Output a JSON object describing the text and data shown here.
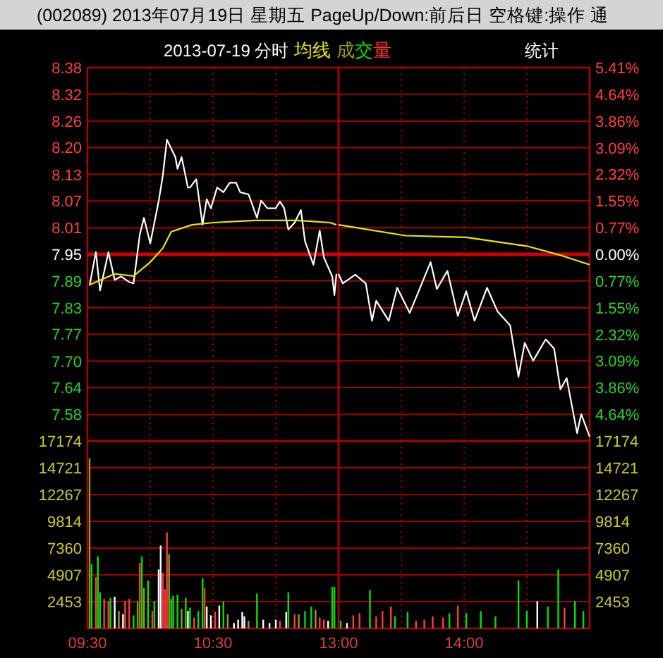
{
  "chart_data": [
    {
      "type": "line",
      "title": "(002089) 2013年07月19日 星期五 PageUp/Down:前后日 空格键:操作 通",
      "subtitle": "2013-07-19 分时",
      "xlim": [
        9.5,
        11.5
      ],
      "xticks": [
        {
          "value": 9.5,
          "label": null
        },
        {
          "value": 10,
          "label": null
        },
        {
          "value": 10.5,
          "label": null
        },
        {
          "value": 11,
          "label": null
        },
        {
          "value": 11.5,
          "label": null
        }
      ],
      "ylim": [
        7.52,
        8.38
      ],
      "yticks": [
        {
          "value": 7.581,
          "label": "7.58"
        },
        {
          "value": 7.643,
          "label": "7.64"
        },
        {
          "value": 7.704,
          "label": "7.70"
        },
        {
          "value": 7.766,
          "label": "7.77"
        },
        {
          "value": 7.827,
          "label": "7.83"
        },
        {
          "value": 7.889,
          "label": "7.89"
        },
        7.95,
        {
          "value": 8.011,
          "label": "8.01"
        },
        {
          "value": 8.073,
          "label": "8.07"
        },
        {
          "value": 8.134,
          "label": "8.13"
        },
        {
          "value": 8.196,
          "label": "8.20"
        },
        {
          "value": 8.257,
          "label": "8.26"
        },
        {
          "value": 8.319,
          "label": "8.32"
        },
        8.38
      ],
      "tick_labels": "y",
      "grid": true,
      "legend": "top",
      "line_style": "solid",
      "ref_lines": [
        {
          "axis": "y",
          "value": 7.95,
          "color": "#d00000"
        }
      ],
      "series": [
        {
          "color": "#ffffff",
          "x": [
            9.517,
            9.567,
            9.6,
            9.633,
            9.667,
            9.717,
            9.767,
            9.833,
            9.867,
            9.917,
            9.95,
            10,
            10.067,
            10.1,
            10.133,
            10.2,
            10.217,
            10.25,
            10.3,
            10.317,
            10.367,
            10.417,
            10.45,
            10.483,
            10.533,
            10.583,
            10.633,
            10.683,
            10.717,
            10.783,
            10.85,
            10.883,
            10.933,
            11,
            11.033,
            11.067,
            11.1,
            11.15,
            11.2,
            11.233,
            11.3,
            11.35,
            11.383,
            11.45,
            11.467,
            11.483
          ],
          "values": [
            7.878,
            7.955,
            7.867,
            7.91,
            7.955,
            7.891,
            7.899,
            7.886,
            7.883,
            7.996,
            8.034,
            7.975,
            8.072,
            8.131,
            8.214,
            8.174,
            8.147,
            8.174,
            8.104,
            8.104,
            8.123,
            8.018,
            8.077,
            8.056,
            8.104,
            8.093,
            8.115,
            8.115,
            8.093,
            8.088,
            8.034,
            8.074,
            8.056,
            8.056,
            8.072,
            8.056,
            8.007,
            8.023,
            8.052,
            7.98,
            7.926,
            8.005,
            7.943,
            7.899,
            7.856,
            7.905
          ]
        },
        {
          "name": "均线",
          "color": "#e8e800",
          "x": [
            9.517,
            9.717,
            9.867,
            10,
            10.1,
            10.167,
            10.333,
            10.5,
            10.833,
            11.167,
            11.283,
            11.433,
            11.483
          ],
          "values": [
            7.88,
            7.905,
            7.9,
            7.932,
            7.964,
            8.002,
            8.018,
            8.023,
            8.028,
            8.028,
            8.026,
            8.023,
            8.018
          ]
        }
      ]
    },
    {
      "type": "line",
      "annotations": [
        "统计"
      ],
      "xlim": [
        13,
        15
      ],
      "xticks": [
        {
          "value": 13,
          "label": null
        },
        {
          "value": 13.5,
          "label": null
        },
        {
          "value": 14,
          "label": null
        },
        {
          "value": 14.5,
          "label": null
        },
        {
          "value": 15,
          "label": null
        }
      ],
      "ylim": [
        7.52,
        8.38
      ],
      "y2lim": [
        -5.41,
        5.41
      ],
      "y2ticks": [
        {
          "value": -4.64,
          "label": "4.64%"
        },
        {
          "value": -3.86,
          "label": "3.86%"
        },
        {
          "value": -3.09,
          "label": "3.09%"
        },
        {
          "value": -2.32,
          "label": "2.32%"
        },
        {
          "value": -1.55,
          "label": "1.55%"
        },
        {
          "value": -0.77,
          "label": "0.77%"
        },
        {
          "value": 0,
          "label": "0.00%"
        },
        {
          "value": 0.77,
          "label": "0.77%"
        },
        {
          "value": 1.55,
          "label": "1.55%"
        },
        {
          "value": 2.32,
          "label": "2.32%"
        },
        {
          "value": 3.09,
          "label": "3.09%"
        },
        {
          "value": 3.86,
          "label": "3.86%"
        },
        {
          "value": 4.64,
          "label": "4.64%"
        },
        {
          "value": 5.41,
          "label": "5.41%"
        }
      ],
      "tick_labels": "y",
      "grid": true,
      "line_style": "solid",
      "ref_lines": [
        {
          "axis": "y",
          "value": 7.95,
          "color": "#d00000"
        }
      ],
      "series": [
        {
          "color": "#ffffff",
          "x": [
            13,
            13.033,
            13.133,
            13.217,
            13.267,
            13.3,
            13.4,
            13.467,
            13.567,
            13.733,
            13.783,
            13.867,
            13.95,
            14.017,
            14.083,
            14.183,
            14.267,
            14.367,
            14.433,
            14.483,
            14.55,
            14.65,
            14.717,
            14.767,
            14.817,
            14.9,
            14.933,
            15
          ],
          "values": [
            7.905,
            7.883,
            7.903,
            7.883,
            7.797,
            7.843,
            7.797,
            7.873,
            7.815,
            7.932,
            7.87,
            7.912,
            7.808,
            7.865,
            7.797,
            7.873,
            7.818,
            7.786,
            7.668,
            7.746,
            7.705,
            7.754,
            7.733,
            7.639,
            7.665,
            7.538,
            7.582,
            7.53
          ]
        },
        {
          "color": "#e8e800",
          "x": [
            13,
            13.533,
            14.017,
            14.5,
            14.767,
            15
          ],
          "values": [
            8.018,
            7.993,
            7.989,
            7.969,
            7.948,
            7.926
          ]
        }
      ]
    },
    {
      "type": "bar",
      "xlim": [
        9.5,
        11.5
      ],
      "xticks": [
        {
          "value": 9.5,
          "label": "09:30"
        },
        {
          "value": 10,
          "label": null
        },
        {
          "value": 10.5,
          "label": "10:30"
        },
        {
          "value": 11,
          "label": null
        },
        {
          "value": 11.5,
          "label": null
        }
      ],
      "ylim": [
        0,
        17174
      ],
      "yticks": [
        2453,
        4907,
        7360,
        9814,
        12267,
        14721,
        17174
      ],
      "grid": true,
      "legend": "top",
      "series": [
        {
          "name": "成交量",
          "x": [
            9.517,
            9.533,
            9.567,
            9.583,
            9.6,
            9.633,
            9.667,
            9.683,
            9.717,
            9.75,
            9.783,
            9.8,
            9.833,
            9.867,
            9.9,
            9.917,
            9.933,
            9.95,
            9.983,
            10.017,
            10.033,
            10.067,
            10.083,
            10.1,
            10.117,
            10.133,
            10.15,
            10.167,
            10.183,
            10.217,
            10.25,
            10.283,
            10.3,
            10.317,
            10.35,
            10.383,
            10.417,
            10.433,
            10.45,
            10.483,
            10.517,
            10.55,
            10.583,
            10.617,
            10.667,
            10.7,
            10.733,
            10.75,
            10.783,
            10.85,
            10.9,
            10.95,
            11,
            11.033,
            11.083,
            11.1,
            11.15,
            11.183,
            11.233,
            11.283,
            11.317,
            11.35,
            11.383,
            11.417,
            11.45,
            11.467
          ],
          "values": [
            15600,
            5900,
            4700,
            6600,
            3300,
            2700,
            2500,
            2800,
            2900,
            1600,
            1300,
            2500,
            2700,
            1200,
            2500,
            6000,
            6600,
            3700,
            4400,
            1600,
            2500,
            5400,
            7600,
            5100,
            3600,
            8800,
            6800,
            2700,
            3000,
            3100,
            1800,
            2800,
            1600,
            1900,
            1000,
            1600,
            4600,
            3700,
            2000,
            1200,
            1500,
            2100,
            2500,
            1300,
            500,
            800,
            1500,
            1100,
            700,
            3200,
            800,
            500,
            800,
            700,
            1500,
            3300,
            1300,
            1300,
            1600,
            2000,
            1700,
            1000,
            800,
            700,
            3800,
            3800
          ],
          "colors": [
            "#9a9a1e",
            "#00e000",
            "#ff3c3c",
            "#00e000",
            "#00e000",
            "#ff3c3c",
            "#ff3c3c",
            "#00e000",
            "#ffffff",
            "#9a9a1e",
            "#ffffff",
            "#ff3c3c",
            "#ff3c3c",
            "#00e000",
            "#00e000",
            "#ff3c3c",
            "#00e000",
            "#9a9a1e",
            "#00e000",
            "#ff3c3c",
            "#00e000",
            "#ffffff",
            "#ffffff",
            "#ff3c3c",
            "#ff3c3c",
            "#ff3c3c",
            "#9a9a1e",
            "#00e000",
            "#00e000",
            "#00e000",
            "#9a9a1e",
            "#00e000",
            "#ffffff",
            "#00e000",
            "#ff3c3c",
            "#00e000",
            "#00e000",
            "#ff3c3c",
            "#ffffff",
            "#ffffff",
            "#ff3c3c",
            "#ffffff",
            "#00e000",
            "#9a9a1e",
            "#ffffff",
            "#ffffff",
            "#ffffff",
            "#ffffff",
            "#9a9a1e",
            "#00e000",
            "#ffffff",
            "#ffffff",
            "#ffffff",
            "#ff3c3c",
            "#ffffff",
            "#00e000",
            "#ff3c3c",
            "#9a9a1e",
            "#00e000",
            "#00e000",
            "#9a9a1e",
            "#ff3c3c",
            "#ff3c3c",
            "#ffffff",
            "#00e000",
            "#00e000"
          ]
        }
      ]
    },
    {
      "type": "bar",
      "xlim": [
        13,
        15
      ],
      "xticks": [
        {
          "value": 13,
          "label": "13:00"
        },
        {
          "value": 13.5,
          "label": null
        },
        {
          "value": 14,
          "label": "14:00"
        },
        {
          "value": 14.5,
          "label": null
        },
        {
          "value": 15,
          "label": null
        }
      ],
      "y2lim": [
        0,
        17174
      ],
      "y2ticks": [
        2453,
        4907,
        7360,
        9814,
        12267,
        14721,
        17174
      ],
      "grid": true,
      "series": [
        {
          "axis": "y2",
          "x": [
            13.017,
            13.067,
            13.117,
            13.167,
            13.25,
            13.3,
            13.35,
            13.417,
            13.45,
            13.55,
            13.617,
            13.683,
            13.75,
            13.833,
            13.883,
            13.95,
            14.017,
            14.133,
            14.25,
            14.433,
            14.5,
            14.583,
            14.667,
            14.75,
            14.8,
            14.883,
            14.95
          ],
          "values": [
            700,
            500,
            1200,
            1400,
            3500,
            1100,
            1600,
            2000,
            1100,
            1500,
            700,
            800,
            1100,
            1000,
            1400,
            2100,
            1400,
            1600,
            1100,
            4400,
            1600,
            2500,
            2000,
            5400,
            1900,
            2500,
            1600
          ],
          "colors": [
            "#00e000",
            "#ffffff",
            "#ff3c3c",
            "#ff3c3c",
            "#00e000",
            "#ff3c3c",
            "#ff3c3c",
            "#ff3c3c",
            "#00e000",
            "#00e000",
            "#ff3c3c",
            "#ff3c3c",
            "#ff3c3c",
            "#ff3c3c",
            "#00e000",
            "#ff3c3c",
            "#00e000",
            "#00e000",
            "#00e000",
            "#00e000",
            "#00e000",
            "#ffffff",
            "#00e000",
            "#00e000",
            "#ff3c3c",
            "#00e000",
            "#00e000"
          ]
        }
      ]
    }
  ]
}
